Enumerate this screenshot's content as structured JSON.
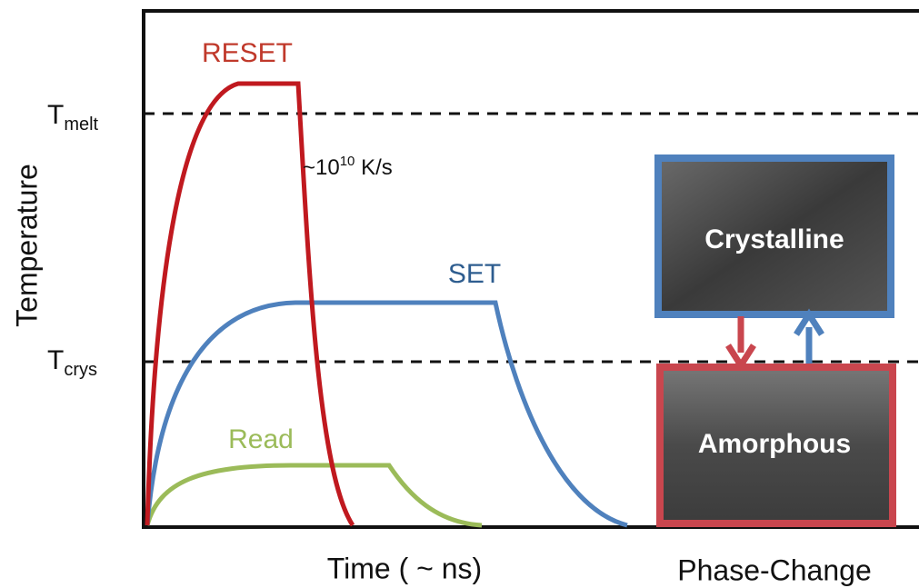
{
  "axis": {
    "y_label": "Temperature",
    "x_label": "Time ( ~ ns)"
  },
  "levels": {
    "melt": {
      "main": "T",
      "sub": "melt"
    },
    "crys": {
      "main": "T",
      "sub": "crys"
    }
  },
  "pulses": {
    "reset": "RESET",
    "set": "SET",
    "read": "Read"
  },
  "rate": {
    "prefix": "~10",
    "exponent": "10",
    "unit": " K/s"
  },
  "states": {
    "crystalline": "Crystalline",
    "amorphous": "Amorphous",
    "caption": "Phase-Change"
  }
}
